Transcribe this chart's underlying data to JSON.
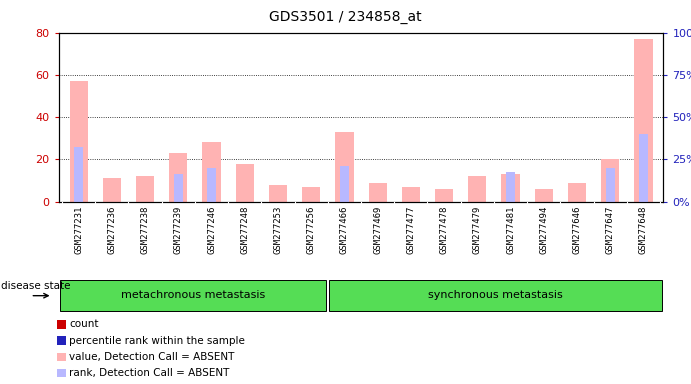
{
  "title": "GDS3501 / 234858_at",
  "samples": [
    "GSM277231",
    "GSM277236",
    "GSM277238",
    "GSM277239",
    "GSM277246",
    "GSM277248",
    "GSM277253",
    "GSM277256",
    "GSM277466",
    "GSM277469",
    "GSM277477",
    "GSM277478",
    "GSM277479",
    "GSM277481",
    "GSM277494",
    "GSM277646",
    "GSM277647",
    "GSM277648"
  ],
  "absent_value": [
    57,
    11,
    12,
    23,
    28,
    18,
    8,
    7,
    33,
    9,
    7,
    6,
    12,
    13,
    6,
    9,
    20,
    77
  ],
  "absent_rank": [
    26,
    0,
    0,
    13,
    16,
    0,
    0,
    0,
    17,
    0,
    0,
    0,
    0,
    14,
    0,
    0,
    16,
    32
  ],
  "group1_label": "metachronous metastasis",
  "group1_count": 8,
  "group2_label": "synchronous metastasis",
  "group2_count": 10,
  "ylim_left": [
    0,
    80
  ],
  "ylim_right": [
    0,
    100
  ],
  "yticks_left": [
    0,
    20,
    40,
    60,
    80
  ],
  "yticks_right": [
    0,
    25,
    50,
    75,
    100
  ],
  "absent_color": "#ffb3b3",
  "absent_rank_color": "#b8b8ff",
  "count_color": "#cc0000",
  "rank_color": "#2222bb",
  "bg_color": "#ffffff",
  "plot_bg": "#ffffff",
  "label_area_color": "#cccccc",
  "group_bar_color": "#55dd55",
  "legend_items": [
    {
      "label": "count",
      "color": "#cc0000"
    },
    {
      "label": "percentile rank within the sample",
      "color": "#2222bb"
    },
    {
      "label": "value, Detection Call = ABSENT",
      "color": "#ffb3b3"
    },
    {
      "label": "rank, Detection Call = ABSENT",
      "color": "#b8b8ff"
    }
  ]
}
